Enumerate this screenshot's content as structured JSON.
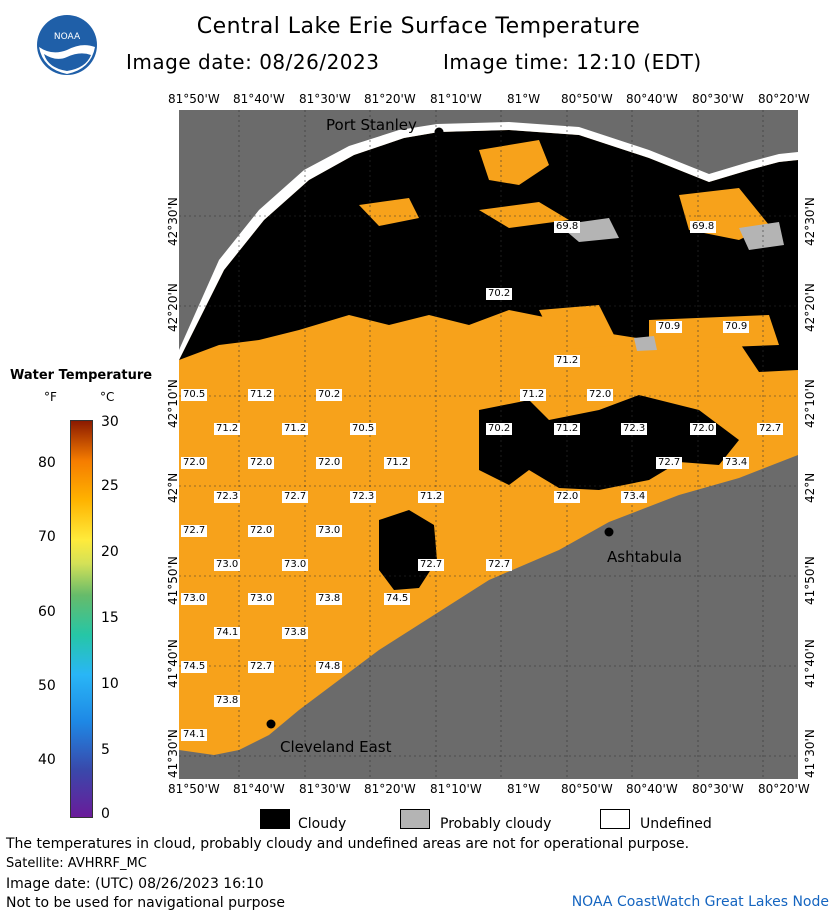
{
  "header": {
    "title": "Central Lake Erie Surface Temperature",
    "image_date": "Image date: 08/26/2023",
    "image_time": "Image time: 12:10 (EDT)",
    "logo_text": "NOAA"
  },
  "axes": {
    "lon_ticks": [
      "81°50'W",
      "81°40'W",
      "81°30'W",
      "81°20'W",
      "81°10'W",
      "81°W",
      "80°50'W",
      "80°40'W",
      "80°30'W",
      "80°20'W"
    ],
    "lat_ticks": [
      "42°30'N",
      "42°20'N",
      "42°10'N",
      "42°N",
      "41°50'N",
      "41°40'N",
      "41°30'N"
    ]
  },
  "places": {
    "port_stanley": "Port Stanley",
    "ashtabula": "Ashtabula",
    "cleveland_east": "Cleveland East"
  },
  "temperatures": [
    "69.8",
    "69.8",
    "70.2",
    "70.9",
    "70.9",
    "71.2",
    "70.5",
    "71.2",
    "70.2",
    "71.2",
    "72.0",
    "71.2",
    "71.2",
    "70.5",
    "70.2",
    "71.2",
    "72.3",
    "72.0",
    "72.7",
    "72.0",
    "72.0",
    "72.0",
    "71.2",
    "72.7",
    "73.4",
    "72.3",
    "72.7",
    "72.3",
    "71.2",
    "72.0",
    "73.4",
    "72.7",
    "72.0",
    "73.0",
    "73.0",
    "73.0",
    "72.7",
    "72.7",
    "73.0",
    "73.0",
    "73.8",
    "74.5",
    "74.1",
    "73.8",
    "74.5",
    "72.7",
    "74.8",
    "73.8",
    "74.1"
  ],
  "legend": {
    "title": "Water Temperature",
    "unit_f": "°F",
    "unit_c": "°C",
    "f_ticks": [
      "80",
      "70",
      "60",
      "50",
      "40"
    ],
    "c_ticks": [
      "30",
      "25",
      "20",
      "15",
      "10",
      "5",
      "0"
    ],
    "keys": [
      {
        "label": "Cloudy",
        "color": "#000000"
      },
      {
        "label": "Probably cloudy",
        "color": "#b4b4b4"
      },
      {
        "label": "Undefined",
        "color": "#ffffff"
      }
    ]
  },
  "footer": {
    "note": "The temperatures in cloud, probably cloudy and undefined areas are not for operational purpose.",
    "satellite": "Satellite: AVHRRF_MC",
    "utc_date": "Image date: (UTC) 08/26/2023  16:10",
    "nav_warning": "Not to be used for navigational purpose",
    "credit": "NOAA CoastWatch Great Lakes Node"
  },
  "colors": {
    "land": "#6b6b6b",
    "cloud": "#000000",
    "warm_water": "#f7a21b",
    "probably_cloudy": "#b4b4b4"
  }
}
